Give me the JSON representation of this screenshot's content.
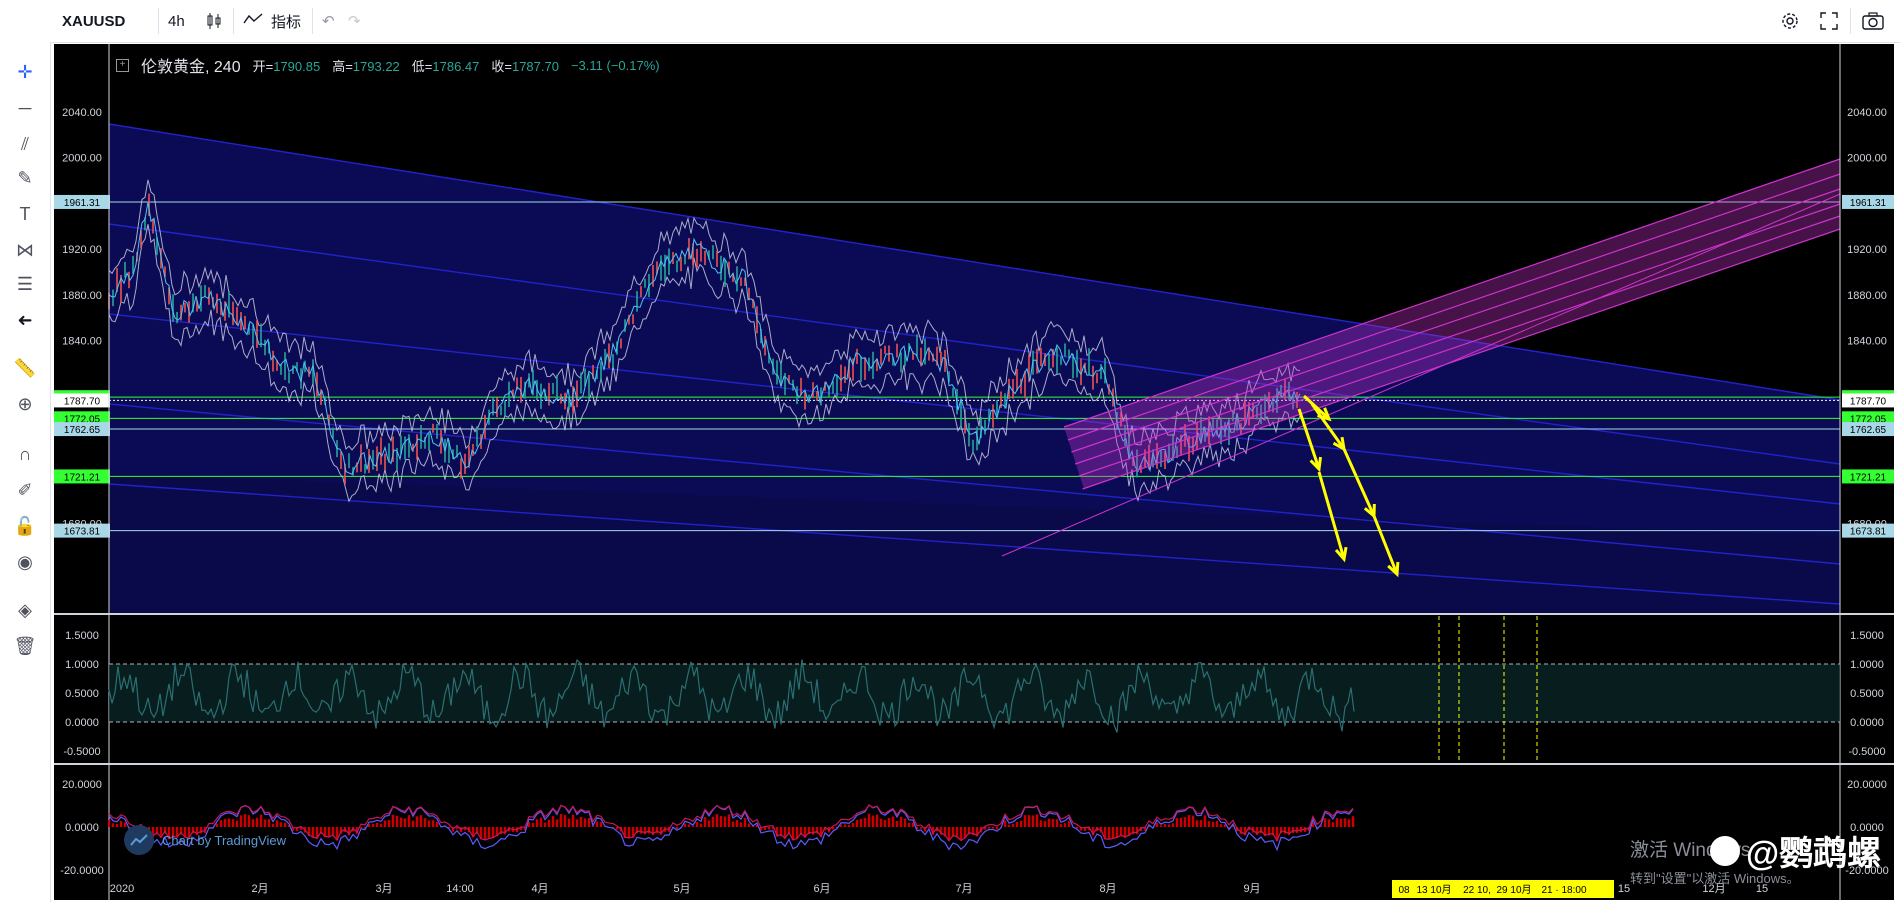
{
  "toolbar": {
    "symbol": "XAUUSD",
    "interval": "4h",
    "indicators_label": "指标",
    "icons": [
      "candles-icon",
      "indicators-icon",
      "undo-icon",
      "redo-icon",
      "settings-icon",
      "fullscreen-icon",
      "camera-icon"
    ]
  },
  "left_tools": [
    "crosshair-icon",
    "horizontal-line-icon",
    "pitchfork-icon",
    "brush-icon",
    "text-icon",
    "pattern-icon",
    "fib-icon",
    "arrow-left-icon",
    "ruler-icon",
    "zoom-icon",
    "magnet-icon",
    "lock-drawing-icon",
    "lock-icon",
    "eye-icon",
    "layers-icon",
    "trash-icon"
  ],
  "legend": {
    "title": "伦敦黄金, 240",
    "open_label": "开=",
    "open": "1790.85",
    "high_label": "高=",
    "high": "1793.22",
    "low_label": "低=",
    "low": "1786.47",
    "close_label": "收=",
    "close": "1787.70",
    "change": "−3.11 (−0.17%)"
  },
  "price_axis": {
    "ticks": [
      "2040.00",
      "2000.00",
      "1920.00",
      "1880.00",
      "1840.00",
      "1680.00"
    ],
    "horizontal_lines": [
      {
        "value": "1961.31",
        "color": "#a8d8e8"
      },
      {
        "value": "1790.55",
        "color": "#33ff33"
      },
      {
        "value": "1787.70",
        "color": "#ffffff"
      },
      {
        "value": "1772.05",
        "color": "#33ff33"
      },
      {
        "value": "1762.65",
        "color": "#a8d8e8"
      },
      {
        "value": "1721.21",
        "color": "#33ff33"
      },
      {
        "value": "1673.81",
        "color": "#a8d8e8"
      }
    ]
  },
  "osc_axis": [
    "1.5000",
    "1.0000",
    "0.5000",
    "0.0000",
    "-0.5000"
  ],
  "macd_axis": [
    "20.0000",
    "0.0000",
    "-20.0000"
  ],
  "time_axis": [
    "2020",
    "2月",
    "3月",
    "14:00",
    "4月",
    "5月",
    "6月",
    "7月",
    "8月",
    "9月",
    "15",
    "12月",
    "15"
  ],
  "time_highlight": {
    "labels": [
      "08",
      "13 10月",
      "22 10,",
      "29 10月",
      "21 · 18:00"
    ],
    "color": "#ffff00"
  },
  "watermark": "Chart by TradingView",
  "os_overlay": {
    "line1": "激活 Windows",
    "line2": "转到\"设置\"以激活 Windows。"
  },
  "weibo_tag": "@鹦鹉螺",
  "colors": {
    "background": "#000000",
    "channel_fill": "#0a0a4a",
    "channel_line": "#2222cc",
    "pitchfork": "#cc33cc",
    "arrow": "#ffff00",
    "osc_line": "#2a6f73",
    "macd_hist": "#cc0000"
  }
}
